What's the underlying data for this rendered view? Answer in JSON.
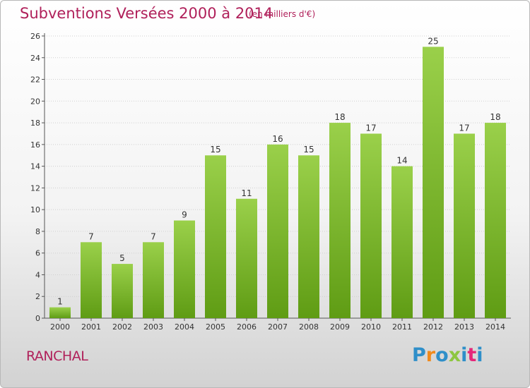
{
  "header": {
    "title": "Subventions Versées 2000 à 2014",
    "subtitle": "(en milliers d'€)"
  },
  "footer": {
    "place": "RANCHAL",
    "logo_text": "Proxiti",
    "logo_letters": [
      {
        "ch": "P",
        "color": "#2f8fc9"
      },
      {
        "ch": "r",
        "color": "#f08a1c"
      },
      {
        "ch": "o",
        "color": "#2f8fc9"
      },
      {
        "ch": "x",
        "color": "#8dc63f"
      },
      {
        "ch": "i",
        "color": "#2f8fc9"
      },
      {
        "ch": "t",
        "color": "#e5287a"
      },
      {
        "ch": "i",
        "color": "#2f8fc9"
      }
    ]
  },
  "colors": {
    "accent": "#b0205a",
    "bar_light": "#9ad04a",
    "bar_dark": "#5f9c14",
    "grid": "#d0d0d0",
    "axis": "#555555"
  },
  "chart_data": {
    "type": "bar",
    "categories": [
      "2000",
      "2001",
      "2002",
      "2003",
      "2004",
      "2005",
      "2006",
      "2007",
      "2008",
      "2009",
      "2010",
      "2011",
      "2012",
      "2013",
      "2014"
    ],
    "values": [
      1,
      7,
      5,
      7,
      9,
      15,
      11,
      16,
      15,
      18,
      17,
      14,
      25,
      17,
      18
    ],
    "title": "Subventions Versées 2000 à 2014",
    "subtitle": "(en milliers d'€)",
    "xlabel": "",
    "ylabel": "",
    "ylim": [
      0,
      26
    ],
    "yticks": [
      0,
      2,
      4,
      6,
      8,
      10,
      12,
      14,
      16,
      18,
      20,
      22,
      24,
      26
    ],
    "grid": true,
    "data_labels": true
  }
}
